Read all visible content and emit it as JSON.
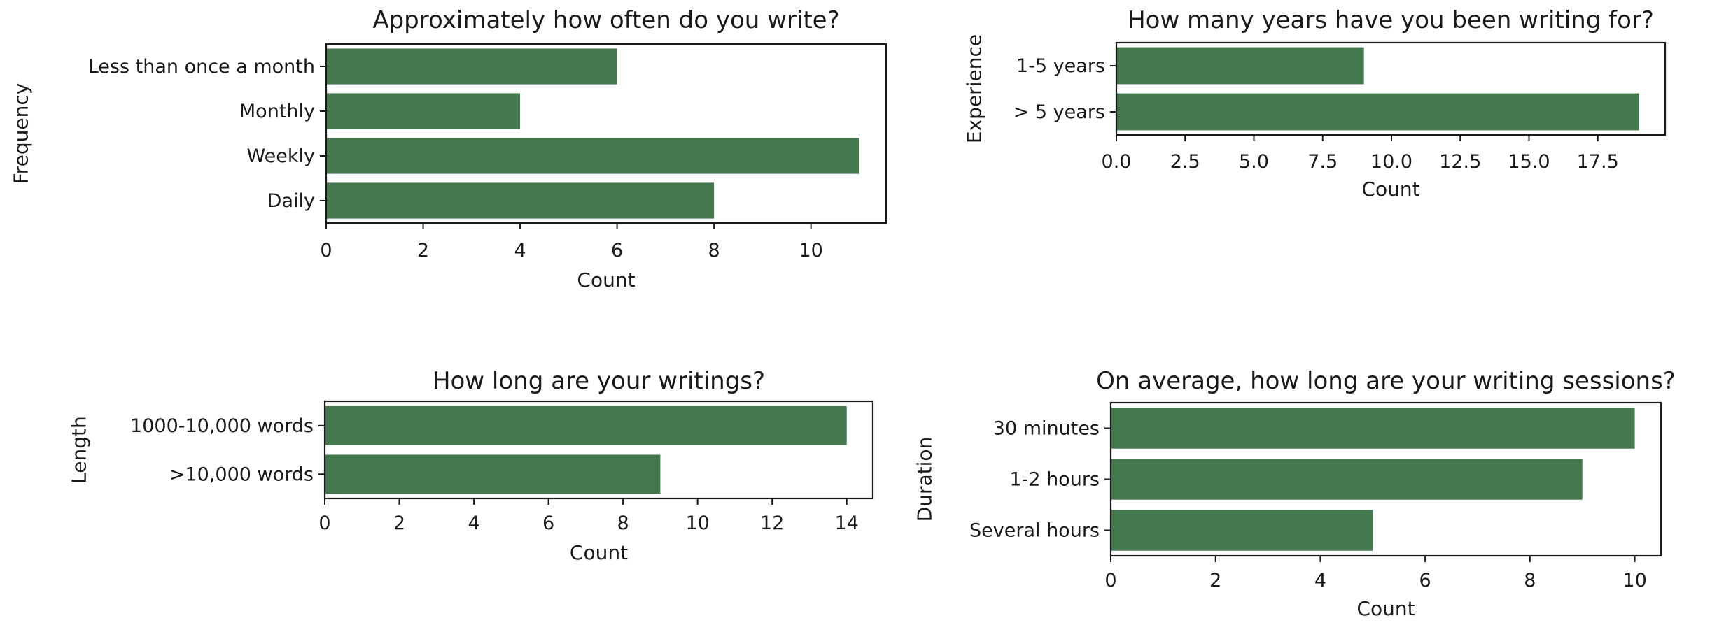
{
  "chart_data": [
    {
      "type": "bar",
      "orientation": "horizontal",
      "title": "Approximately how often do you write?",
      "xlabel": "Count",
      "ylabel": "Frequency",
      "categories": [
        "Less than once a month",
        "Monthly",
        "Weekly",
        "Daily"
      ],
      "values": [
        6,
        4,
        11,
        8
      ],
      "xlim": [
        0,
        11.55
      ],
      "xticks": [
        0,
        2,
        4,
        6,
        8,
        10
      ],
      "xtick_labels": [
        "0",
        "2",
        "4",
        "6",
        "8",
        "10"
      ],
      "grid": false,
      "bar_color": "#44784f"
    },
    {
      "type": "bar",
      "orientation": "horizontal",
      "title": "How many years have you been writing for?",
      "xlabel": "Count",
      "ylabel": "Experience",
      "categories": [
        "1-5 years",
        "> 5 years"
      ],
      "values": [
        9,
        19
      ],
      "xlim": [
        0,
        19.95
      ],
      "xticks": [
        0,
        2.5,
        5,
        7.5,
        10,
        12.5,
        15,
        17.5
      ],
      "xtick_labels": [
        "0.0",
        "2.5",
        "5.0",
        "7.5",
        "10.0",
        "12.5",
        "15.0",
        "17.5"
      ],
      "grid": false,
      "bar_color": "#44784f"
    },
    {
      "type": "bar",
      "orientation": "horizontal",
      "title": "How long are your writings?",
      "xlabel": "Count",
      "ylabel": "Length",
      "categories": [
        "1000-10,000 words",
        ">10,000 words"
      ],
      "values": [
        14,
        9
      ],
      "xlim": [
        0,
        14.7
      ],
      "xticks": [
        0,
        2,
        4,
        6,
        8,
        10,
        12,
        14
      ],
      "xtick_labels": [
        "0",
        "2",
        "4",
        "6",
        "8",
        "10",
        "12",
        "14"
      ],
      "grid": false,
      "bar_color": "#44784f"
    },
    {
      "type": "bar",
      "orientation": "horizontal",
      "title": "On average, how long are your writing sessions?",
      "xlabel": "Count",
      "ylabel": "Duration",
      "categories": [
        "30 minutes",
        "1-2 hours",
        "Several hours"
      ],
      "values": [
        10,
        9,
        5
      ],
      "xlim": [
        0,
        10.5
      ],
      "xticks": [
        0,
        2,
        4,
        6,
        8,
        10
      ],
      "xtick_labels": [
        "0",
        "2",
        "4",
        "6",
        "8",
        "10"
      ],
      "grid": false,
      "bar_color": "#44784f"
    }
  ]
}
